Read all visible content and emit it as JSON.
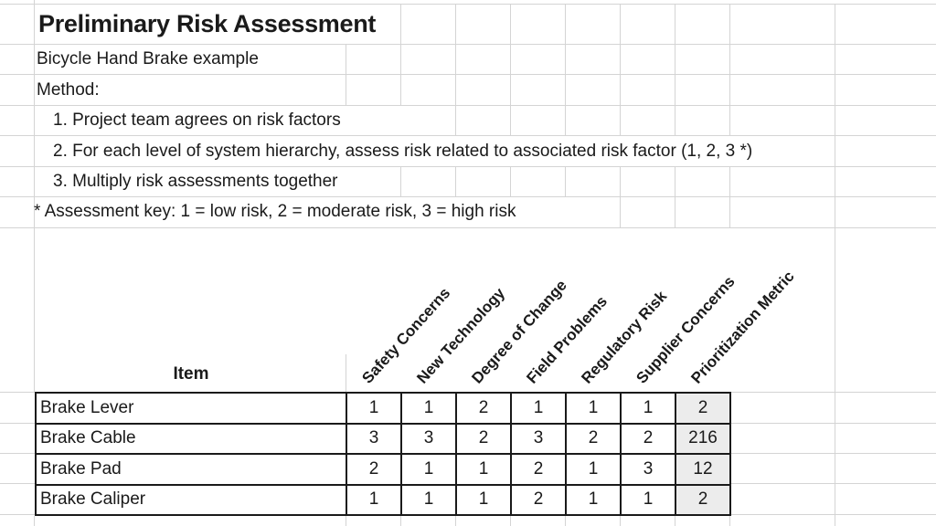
{
  "sheet": {
    "title": "Preliminary Risk Assessment",
    "subtitle": "Bicycle Hand Brake example",
    "method_label": "Method:",
    "method_steps": [
      "1. Project team agrees on risk factors",
      "2. For each level of system hierarchy, assess risk related to associated risk factor (1, 2, 3 *)",
      "3. Multiply risk assessments together"
    ],
    "assessment_key": "* Assessment key: 1 = low risk, 2 = moderate risk, 3 = high risk"
  },
  "table": {
    "item_header": "Item",
    "risk_factors": [
      "Safety Concerns",
      "New Technology",
      "Degree of Change",
      "Field Problems",
      "Regulatory Risk",
      "Supplier Concerns",
      "Prioritization Metric"
    ],
    "rows": [
      {
        "item": "Brake Lever",
        "values": [
          "1",
          "1",
          "2",
          "1",
          "1",
          "1"
        ],
        "metric": "2"
      },
      {
        "item": "Brake Cable",
        "values": [
          "3",
          "3",
          "2",
          "3",
          "2",
          "2"
        ],
        "metric": "216"
      },
      {
        "item": "Brake Pad",
        "values": [
          "2",
          "1",
          "1",
          "2",
          "1",
          "3"
        ],
        "metric": "12"
      },
      {
        "item": "Brake Caliper",
        "values": [
          "1",
          "1",
          "1",
          "2",
          "1",
          "1"
        ],
        "metric": "2"
      }
    ]
  },
  "colors": {
    "background": "#ffffff",
    "text": "#1a1a1a",
    "grid_line": "#d4d4d4",
    "table_border": "#1a1a1a",
    "metric_fill": "#ececec"
  }
}
